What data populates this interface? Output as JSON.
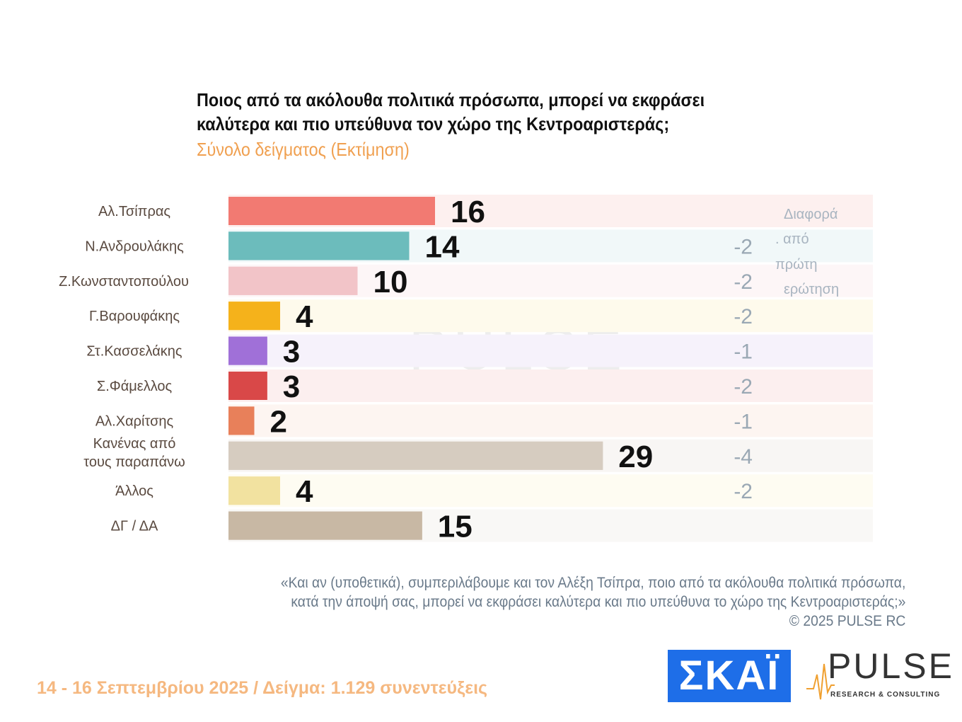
{
  "chart_data": {
    "type": "bar",
    "orientation": "horizontal",
    "title": "Ποιος από τα ακόλουθα πολιτικά πρόσωπα, μπορεί να εκφράσει καλύτερα και πιο υπεύθυνα τον χώρο της Κεντροαριστεράς;",
    "title_lines": [
      "Ποιος από τα ακόλουθα πολιτικά πρόσωπα, μπορεί να εκφράσει",
      "καλύτερα και πιο υπεύθυνα τον χώρο της Κεντροαριστεράς;"
    ],
    "subtitle": "Σύνολο δείγματος   (Εκτίμηση)",
    "categories": [
      "Αλ.Τσίπρας",
      "Ν.Ανδρουλάκης",
      "Ζ.Κωνσταντοπούλου",
      "Γ.Βαρουφάκης",
      "Στ.Κασσελάκης",
      "Σ.Φάμελλος",
      "Αλ.Χαρίτσης",
      "Κανένας από τους παραπάνω",
      "Άλλος",
      "ΔΓ / ΔΑ"
    ],
    "values": [
      16,
      14,
      10,
      4,
      3,
      3,
      2,
      29,
      4,
      15
    ],
    "diff_label": "Διαφορά . από πρώτη ερώτηση",
    "diff_label_lines": [
      "Διαφορά",
      ". από",
      "πρώτη",
      "ερώτηση"
    ],
    "diffs": [
      "",
      "-2",
      "-2",
      "-2",
      "-1",
      "-2",
      "-1",
      "-4",
      "-2",
      ""
    ],
    "colors": [
      "#f27a72",
      "#6cbcbc",
      "#f2c4c8",
      "#f5b21b",
      "#a070d8",
      "#d94848",
      "#e8805a",
      "#d6ccc0",
      "#f2e2a0",
      "#c8b8a4"
    ],
    "band_colors": [
      "#fdf0ef",
      "#f1f8f9",
      "#fdf6f7",
      "#fefaec",
      "#f6f2fb",
      "#fcefef",
      "#fdf5f1",
      "#f8f6f4",
      "#fefcf2",
      "#f9f8f6"
    ],
    "xlim": [
      0,
      50
    ],
    "grid": false,
    "legend": "none"
  },
  "note_lines": [
    "«Και αν (υποθετικά), συμπεριλάβουμε και τον Αλέξη Τσίπρα, ποιο από τα ακόλουθα πολιτικά πρόσωπα,",
    "κατά την άποψή σας, μπορεί να εκφράσει καλύτερα και πιο υπεύθυνα το χώρο της Κεντροαριστεράς;»",
    "©  2025  PULSE RC"
  ],
  "footer": "14 - 16 Σεπτεμβρίου 2025  /  Δείγμα:  1.129 συνεντεύξεις",
  "logos": {
    "skai": "ΣΚΑΪ",
    "pulse": "PULSE",
    "pulse_sub": "RESEARCH & CONSULTING",
    "watermark": "PULSE",
    "watermark_sub": "RESEARCH & CONSULTING"
  }
}
